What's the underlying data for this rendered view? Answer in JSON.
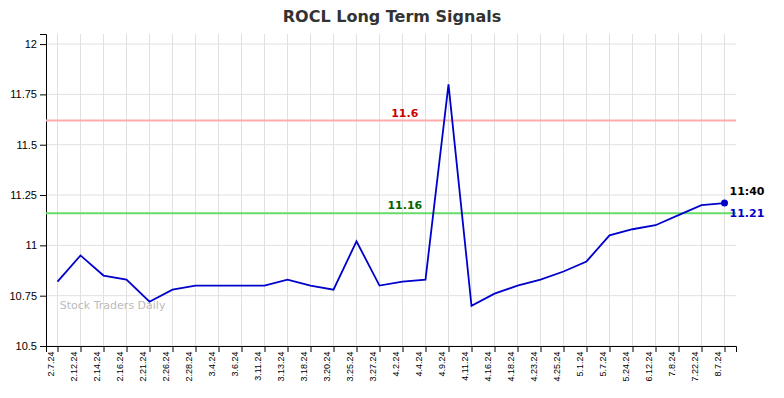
{
  "chart_data": {
    "type": "line",
    "title": "ROCL Long Term Signals",
    "categories": [
      "2.7.24",
      "2.12.24",
      "2.14.24",
      "2.16.24",
      "2.21.24",
      "2.26.24",
      "2.28.24",
      "3.4.24",
      "3.6.24",
      "3.11.24",
      "3.13.24",
      "3.18.24",
      "3.20.24",
      "3.25.24",
      "3.27.24",
      "4.2.24",
      "4.4.24",
      "4.9.24",
      "4.11.24",
      "4.16.24",
      "4.18.24",
      "4.23.24",
      "4.25.24",
      "5.1.24",
      "5.7.24",
      "5.24.24",
      "6.12.24",
      "7.8.24",
      "7.22.24",
      "8.7.24"
    ],
    "values": [
      10.82,
      10.95,
      10.85,
      10.83,
      10.72,
      10.78,
      10.8,
      10.8,
      10.8,
      10.8,
      10.83,
      10.8,
      10.78,
      11.02,
      10.8,
      10.82,
      10.83,
      11.8,
      10.7,
      10.76,
      10.8,
      10.83,
      10.87,
      10.92,
      11.05,
      11.08,
      11.1,
      11.15,
      11.2,
      11.21
    ],
    "color": "#0000cc",
    "ylim": [
      10.5,
      12.05
    ],
    "yticks": [
      10.5,
      10.75,
      11,
      11.25,
      11.5,
      11.75,
      12
    ],
    "grid": true,
    "reference_lines": [
      {
        "value": 11.62,
        "label": "11.6",
        "color": "#ffaaaa",
        "label_color": "#cc0000"
      },
      {
        "value": 11.16,
        "label": "11.16",
        "color": "#66dd66",
        "label_color": "#006600"
      }
    ],
    "annotations": [
      {
        "text": "11:40",
        "x": "8.7.24"
      }
    ],
    "watermark": "Stock Traders Daily"
  }
}
